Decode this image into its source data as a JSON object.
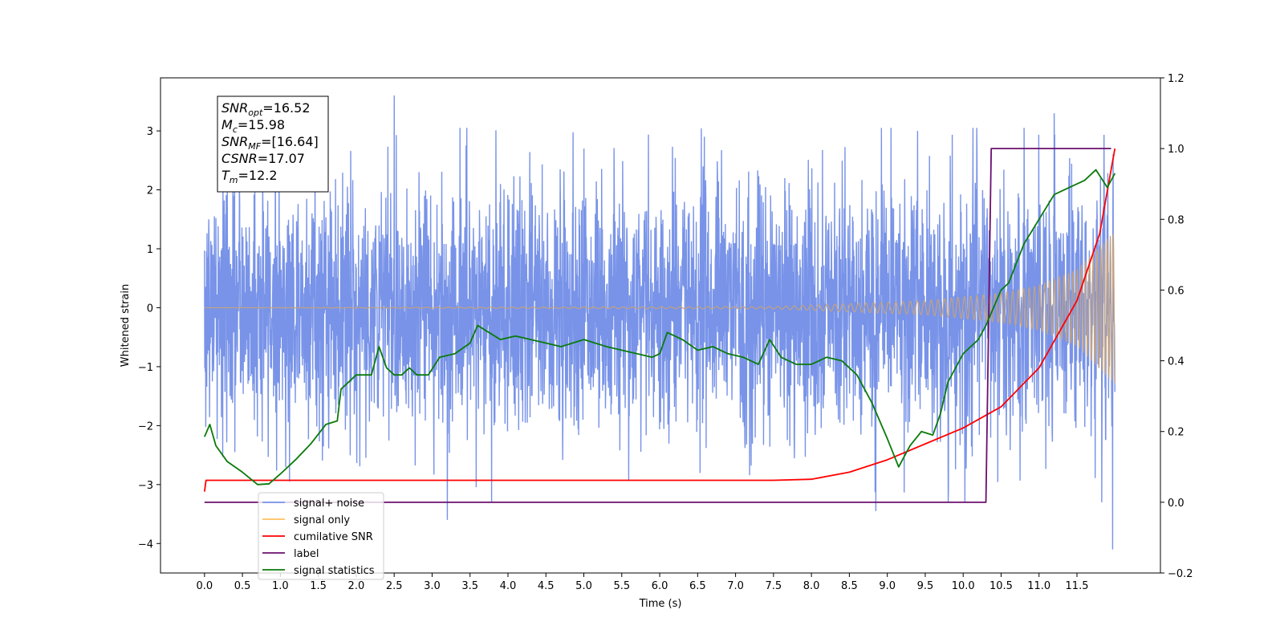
{
  "chart_data": {
    "type": "line",
    "xlabel": "Time (s)",
    "ylabel_left": "Whitened strain",
    "ylabel_right": "",
    "xlim": [
      -0.58,
      12.6
    ],
    "ylim_left": [
      -4.5,
      3.9
    ],
    "ylim_right": [
      -0.2,
      1.2
    ],
    "x_ticks": [
      "0.0",
      "0.5",
      "1.0",
      "1.5",
      "2.0",
      "2.5",
      "3.0",
      "3.5",
      "4.0",
      "4.5",
      "5.0",
      "5.5",
      "6.0",
      "6.5",
      "7.0",
      "7.5",
      "8.0",
      "8.5",
      "9.0",
      "9.5",
      "10.0",
      "10.5",
      "11.0",
      "11.5"
    ],
    "y_ticks_left": [
      "3",
      "2",
      "1",
      "0",
      "−1",
      "−2",
      "−3",
      "−4"
    ],
    "y_ticks_right": [
      "1.2",
      "1.0",
      "0.8",
      "0.6",
      "0.4",
      "0.2",
      "0.0",
      "−0.2"
    ],
    "grid": false,
    "legend_position": "lower-left",
    "info_box": {
      "position": "top-left",
      "lines": [
        {
          "sym": "SNR",
          "sub": "opt",
          "val": "=16.52"
        },
        {
          "sym": "M",
          "sub": "c",
          "val": "=15.98"
        },
        {
          "sym": "SNR",
          "sub": "MF",
          "val": "=[16.64]"
        },
        {
          "sym": "CSNR",
          "sub": "",
          "val": "=17.07"
        },
        {
          "sym": "T",
          "sub": "m",
          "val": "=12.2"
        }
      ]
    },
    "series": [
      {
        "name": "signal+ noise",
        "color": "#7893e8",
        "axis": "left",
        "kind": "noise",
        "x_range": [
          0.0,
          12.0
        ],
        "approx_amplitude": 1.1,
        "peak_values": [
          [
            2.5,
            3.6
          ],
          [
            3.9,
            2.1
          ],
          [
            5.0,
            2.7
          ],
          [
            9.4,
            3.0
          ],
          [
            11.2,
            3.3
          ],
          [
            11.97,
            -4.1
          ],
          [
            3.2,
            -3.6
          ],
          [
            8.85,
            -3.45
          ]
        ]
      },
      {
        "name": "signal only",
        "color": "#c4a27e",
        "axis": "left",
        "kind": "chirp",
        "x_range": [
          0.0,
          12.0
        ],
        "amplitude_envelope": [
          [
            0.0,
            0.0
          ],
          [
            7.5,
            0.02
          ],
          [
            8.5,
            0.07
          ],
          [
            9.5,
            0.12
          ],
          [
            10.5,
            0.25
          ],
          [
            11.0,
            0.38
          ],
          [
            11.5,
            0.65
          ],
          [
            12.0,
            1.3
          ]
        ]
      },
      {
        "name": "cumilative SNR",
        "color": "#ff0000",
        "axis": "right",
        "points": [
          [
            0.0,
            0.03
          ],
          [
            0.02,
            0.062
          ],
          [
            7.5,
            0.062
          ],
          [
            8.0,
            0.065
          ],
          [
            8.5,
            0.085
          ],
          [
            9.0,
            0.12
          ],
          [
            9.5,
            0.165
          ],
          [
            10.0,
            0.21
          ],
          [
            10.5,
            0.27
          ],
          [
            11.0,
            0.38
          ],
          [
            11.5,
            0.57
          ],
          [
            11.8,
            0.76
          ],
          [
            12.0,
            1.0
          ]
        ]
      },
      {
        "name": "label",
        "color": "#6a0f6e",
        "axis": "right",
        "points": [
          [
            0.0,
            0.0
          ],
          [
            10.3,
            0.0
          ],
          [
            10.37,
            1.0
          ],
          [
            11.95,
            1.0
          ]
        ]
      },
      {
        "name": "signal statistics",
        "color": "#0a7a0a",
        "axis": "right",
        "points": [
          [
            0.0,
            0.185
          ],
          [
            0.07,
            0.22
          ],
          [
            0.15,
            0.16
          ],
          [
            0.3,
            0.115
          ],
          [
            0.5,
            0.085
          ],
          [
            0.7,
            0.05
          ],
          [
            0.85,
            0.052
          ],
          [
            1.0,
            0.08
          ],
          [
            1.2,
            0.12
          ],
          [
            1.4,
            0.165
          ],
          [
            1.6,
            0.22
          ],
          [
            1.75,
            0.23
          ],
          [
            1.8,
            0.32
          ],
          [
            2.0,
            0.36
          ],
          [
            2.2,
            0.36
          ],
          [
            2.3,
            0.44
          ],
          [
            2.4,
            0.38
          ],
          [
            2.5,
            0.36
          ],
          [
            2.6,
            0.36
          ],
          [
            2.7,
            0.38
          ],
          [
            2.8,
            0.36
          ],
          [
            2.95,
            0.36
          ],
          [
            3.1,
            0.41
          ],
          [
            3.3,
            0.42
          ],
          [
            3.5,
            0.45
          ],
          [
            3.6,
            0.5
          ],
          [
            3.75,
            0.48
          ],
          [
            3.9,
            0.46
          ],
          [
            4.1,
            0.47
          ],
          [
            4.3,
            0.46
          ],
          [
            4.5,
            0.45
          ],
          [
            4.7,
            0.44
          ],
          [
            5.0,
            0.46
          ],
          [
            5.3,
            0.44
          ],
          [
            5.5,
            0.43
          ],
          [
            5.7,
            0.42
          ],
          [
            5.9,
            0.41
          ],
          [
            6.0,
            0.42
          ],
          [
            6.1,
            0.48
          ],
          [
            6.3,
            0.46
          ],
          [
            6.5,
            0.43
          ],
          [
            6.7,
            0.44
          ],
          [
            6.9,
            0.42
          ],
          [
            7.1,
            0.41
          ],
          [
            7.3,
            0.39
          ],
          [
            7.45,
            0.46
          ],
          [
            7.6,
            0.41
          ],
          [
            7.8,
            0.39
          ],
          [
            8.0,
            0.39
          ],
          [
            8.2,
            0.41
          ],
          [
            8.4,
            0.4
          ],
          [
            8.6,
            0.36
          ],
          [
            8.8,
            0.28
          ],
          [
            9.0,
            0.18
          ],
          [
            9.15,
            0.1
          ],
          [
            9.3,
            0.16
          ],
          [
            9.45,
            0.2
          ],
          [
            9.6,
            0.19
          ],
          [
            9.7,
            0.25
          ],
          [
            9.8,
            0.34
          ],
          [
            10.0,
            0.42
          ],
          [
            10.2,
            0.46
          ],
          [
            10.3,
            0.5
          ],
          [
            10.5,
            0.6
          ],
          [
            10.6,
            0.62
          ],
          [
            10.8,
            0.73
          ],
          [
            11.0,
            0.8
          ],
          [
            11.2,
            0.87
          ],
          [
            11.4,
            0.89
          ],
          [
            11.6,
            0.91
          ],
          [
            11.75,
            0.94
          ],
          [
            11.9,
            0.89
          ],
          [
            12.0,
            0.93
          ]
        ]
      }
    ]
  }
}
